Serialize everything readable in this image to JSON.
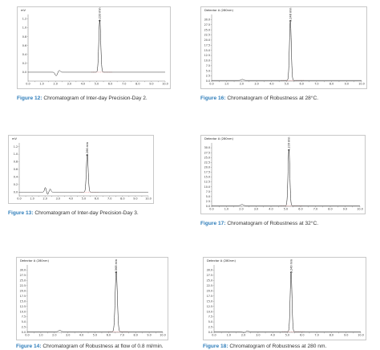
{
  "panels": [
    {
      "id": "fig12",
      "caption_label": "Figure 12:",
      "caption_text": " Chromatogram of Inter-day Precision-Day 2.",
      "chart_data": {
        "type": "line",
        "header": "mV",
        "xlim": [
          0,
          10
        ],
        "xticks": [
          "0.0",
          "0.5",
          "1.0",
          "1.5",
          "2.0",
          "2.5",
          "3.0",
          "3.5",
          "4.0",
          "4.5",
          "5.0",
          "5.5",
          "6.0",
          "6.5",
          "7.0",
          "7.5",
          "8.0",
          "8.5",
          "9.0",
          "9.5",
          "10.0"
        ],
        "ylim": [
          -0.2,
          1.3
        ],
        "yticks": [
          "0.0",
          "0.2",
          "0.4",
          "0.6",
          "0.8",
          "1.0",
          "1.2"
        ],
        "peak_label": "5.233 min",
        "peaks": [
          {
            "rt": 5.23,
            "height": 1.18,
            "width": 0.07
          },
          {
            "rt": 2.05,
            "height": -0.08,
            "width": 0.08
          },
          {
            "rt": 2.28,
            "height": 0.04,
            "width": 0.07
          }
        ]
      }
    },
    {
      "id": "fig16",
      "caption_label": "Figure 16:",
      "caption_text": " Chromatogram of Robustness at 28°C.",
      "chart_data": {
        "type": "line",
        "header": "Detector A (280nm)",
        "xlim": [
          0,
          10
        ],
        "xticks": [
          "0.0",
          "0.5",
          "1.0",
          "1.5",
          "2.0",
          "2.5",
          "3.0",
          "3.5",
          "4.0",
          "4.5",
          "5.0",
          "5.5",
          "6.0",
          "6.5",
          "7.0",
          "7.5",
          "8.0",
          "8.5",
          "9.0",
          "9.5",
          "10.0"
        ],
        "ylim": [
          0,
          32.5
        ],
        "yticks": [
          "0.0",
          "2.5",
          "5.0",
          "7.5",
          "10.0",
          "12.5",
          "15.0",
          "17.5",
          "20.0",
          "22.5",
          "25.0",
          "27.5",
          "30.0"
        ],
        "peak_label": "5.248 min",
        "peaks": [
          {
            "rt": 5.25,
            "height": 29.5,
            "width": 0.06
          },
          {
            "rt": 2.05,
            "height": 0.5,
            "width": 0.08
          }
        ]
      }
    },
    {
      "id": "fig13",
      "caption_label": "Figure 13:",
      "caption_text": " Chromatogram of Inter-day Precision-Day 3.",
      "chart_data": {
        "type": "line",
        "header": "mV",
        "xlim": [
          0,
          10
        ],
        "xticks": [
          "0.0",
          "0.5",
          "1.0",
          "1.5",
          "2.0",
          "2.5",
          "3.0",
          "3.5",
          "4.0",
          "4.5",
          "5.0",
          "5.5",
          "6.0",
          "6.5",
          "7.0",
          "7.5",
          "8.0",
          "8.5",
          "9.0",
          "9.5",
          "10.0"
        ],
        "ylim": [
          -0.1,
          1.3
        ],
        "yticks": [
          "0.0",
          "0.2",
          "0.4",
          "0.6",
          "0.8",
          "1.0",
          "1.2"
        ],
        "peak_label": "5.266 min",
        "peaks": [
          {
            "rt": 5.27,
            "height": 1.0,
            "width": 0.07
          },
          {
            "rt": 2.02,
            "height": 0.12,
            "width": 0.06
          },
          {
            "rt": 2.2,
            "height": -0.06,
            "width": 0.05
          },
          {
            "rt": 2.4,
            "height": 0.08,
            "width": 0.06
          }
        ]
      }
    },
    {
      "id": "fig17",
      "caption_label": "Figure 17:",
      "caption_text": " Chromatogram of Robustness at 32°C.",
      "chart_data": {
        "type": "line",
        "header": "Detector A (280nm)",
        "xlim": [
          0,
          10
        ],
        "xticks": [
          "0.0",
          "0.5",
          "1.0",
          "1.5",
          "2.0",
          "2.5",
          "3.0",
          "3.5",
          "4.0",
          "4.5",
          "5.0",
          "5.5",
          "6.0",
          "6.5",
          "7.0",
          "7.5",
          "8.0",
          "8.5",
          "9.0",
          "9.5",
          "10.0"
        ],
        "ylim": [
          0,
          32.5
        ],
        "yticks": [
          "0.0",
          "2.5",
          "5.0",
          "7.5",
          "10.0",
          "12.5",
          "15.0",
          "17.5",
          "20.0",
          "22.5",
          "25.0",
          "27.5",
          "30.0"
        ],
        "peak_label": "5.209 min",
        "peaks": [
          {
            "rt": 5.21,
            "height": 29.0,
            "width": 0.06
          },
          {
            "rt": 2.05,
            "height": 0.6,
            "width": 0.08
          }
        ]
      }
    },
    {
      "id": "fig14",
      "caption_label": "Figure 14:",
      "caption_text": " Chromatogram of Robustness at flow of 0.8 ml/min.",
      "chart_data": {
        "type": "line",
        "header": "Detector A (280nm)",
        "xlim": [
          0,
          10
        ],
        "xticks": [
          "0.0",
          "0.5",
          "1.0",
          "1.5",
          "2.0",
          "2.5",
          "3.0",
          "3.5",
          "4.0",
          "4.5",
          "5.0",
          "5.5",
          "6.0",
          "6.5",
          "7.0",
          "7.5",
          "8.0",
          "8.5",
          "9.0",
          "9.5",
          "10.0"
        ],
        "ylim": [
          0,
          32.5
        ],
        "yticks": [
          "0.0",
          "2.5",
          "5.0",
          "7.5",
          "10.0",
          "12.5",
          "15.0",
          "17.5",
          "20.0",
          "22.5",
          "25.0",
          "27.5",
          "30.0"
        ],
        "peak_label": "6.568 min",
        "peaks": [
          {
            "rt": 6.57,
            "height": 29.0,
            "width": 0.08
          },
          {
            "rt": 2.4,
            "height": 0.7,
            "width": 0.08
          }
        ]
      }
    },
    {
      "id": "fig18",
      "caption_label": "Figure 18:",
      "caption_text": " Chromatogram of Robustness at 280 nm.",
      "chart_data": {
        "type": "line",
        "header": "Detector A (280nm)",
        "xlim": [
          0,
          10
        ],
        "xticks": [
          "0.0",
          "0.5",
          "1.0",
          "1.5",
          "2.0",
          "2.5",
          "3.0",
          "3.5",
          "4.0",
          "4.5",
          "5.0",
          "5.5",
          "6.0",
          "6.5",
          "7.0",
          "7.5",
          "8.0",
          "8.5",
          "9.0",
          "9.5",
          "10.0"
        ],
        "ylim": [
          0,
          32.5
        ],
        "yticks": [
          "0.0",
          "2.5",
          "5.0",
          "7.5",
          "10.0",
          "12.5",
          "15.0",
          "17.5",
          "20.0",
          "22.5",
          "25.0",
          "27.5",
          "30.0"
        ],
        "peak_label": "5.249 min",
        "peaks": [
          {
            "rt": 5.25,
            "height": 29.0,
            "width": 0.06
          },
          {
            "rt": 2.05,
            "height": -0.6,
            "width": 0.08
          },
          {
            "rt": 2.25,
            "height": 0.4,
            "width": 0.07
          }
        ]
      }
    }
  ]
}
